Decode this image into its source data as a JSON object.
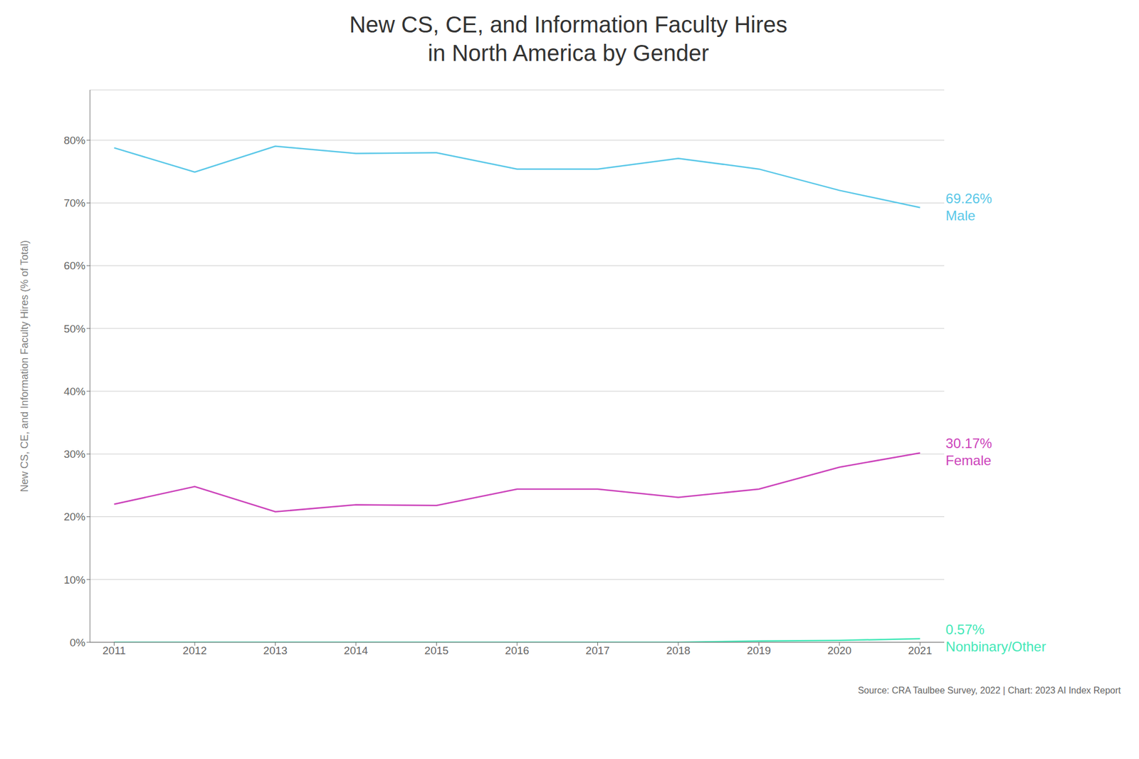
{
  "chart_data": {
    "type": "line",
    "title": "New CS, CE, and Information Faculty Hires\nin North America by Gender",
    "y_label": "New CS, CE, and Information Faculty Hires (% of Total)",
    "x": [
      2011,
      2012,
      2013,
      2014,
      2015,
      2016,
      2017,
      2018,
      2019,
      2020,
      2021
    ],
    "series": [
      {
        "name": "Male",
        "color": "#5bc8e8",
        "values": [
          0.7878,
          0.7492,
          0.7903,
          0.7789,
          0.78,
          0.754,
          0.754,
          0.771,
          0.754,
          0.72,
          0.6926
        ]
      },
      {
        "name": "Female",
        "color": "#cc44bb",
        "values": [
          0.22,
          0.248,
          0.208,
          0.219,
          0.218,
          0.244,
          0.244,
          0.231,
          0.244,
          0.279,
          0.3017
        ]
      },
      {
        "name": "Nonbinary/Other",
        "color": "#44e8b8",
        "values": [
          0.0,
          0.0,
          0.0,
          0.0,
          0.0,
          0.0,
          0.0,
          0.0,
          0.002,
          0.003,
          0.0057
        ]
      }
    ],
    "xlim": [
      2010.7,
      2021.3
    ],
    "xticks": [
      2011,
      2012,
      2013,
      2014,
      2015,
      2016,
      2017,
      2018,
      2019,
      2020,
      2021
    ],
    "ylim": [
      0.0,
      0.88
    ],
    "yticks": [
      {
        "value": 0.0,
        "label": "0%"
      },
      {
        "value": 0.1,
        "label": "10%"
      },
      {
        "value": 0.2,
        "label": "20%"
      },
      {
        "value": 0.3,
        "label": "30%"
      },
      {
        "value": 0.4,
        "label": "40%"
      },
      {
        "value": 0.5,
        "label": "50%"
      },
      {
        "value": 0.6,
        "label": "60%"
      },
      {
        "value": 0.7,
        "label": "70%"
      },
      {
        "value": 0.8,
        "label": "80%"
      }
    ],
    "grid": true,
    "annotations": [
      {
        "text": "69.26%",
        "series": "Male"
      },
      {
        "text": "30.17%",
        "series": "Female"
      },
      {
        "text": "0.57%",
        "series": "Nonbinary/Other"
      },
      {
        "text": "Source: CRA Taulbee Survey, 2022 | Chart: 2023 AI Index Report"
      }
    ]
  }
}
